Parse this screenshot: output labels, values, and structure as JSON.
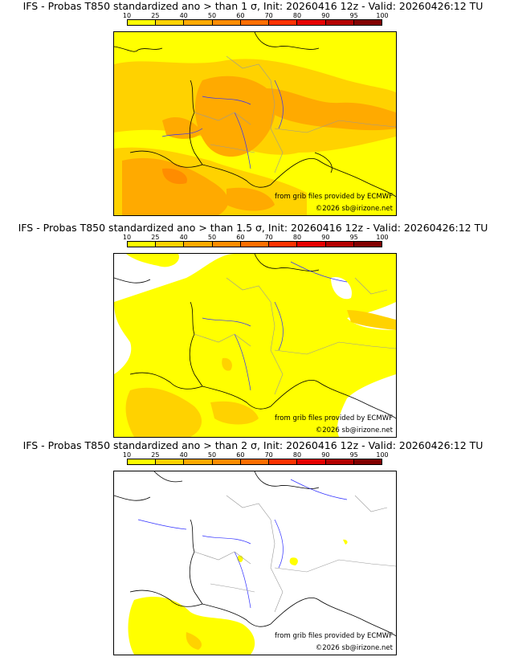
{
  "colorbar": {
    "ticks": [
      "10",
      "25",
      "40",
      "50",
      "60",
      "70",
      "80",
      "90",
      "95",
      "100"
    ],
    "colors": [
      "#ffff00",
      "#ffd200",
      "#ffaa00",
      "#ff8c00",
      "#ff6e00",
      "#ff3200",
      "#e60000",
      "#b40000",
      "#820000"
    ]
  },
  "panels": [
    {
      "title": "IFS - Probas T850  standardized ano > than 1 σ, Init: 20260416 12z - Valid: 20260426:12 TU",
      "credit_ecmwf": "from grib files provided by ECMWF",
      "credit_site": "©2026 sb@irizone.net",
      "field_level": "high"
    },
    {
      "title": "IFS - Probas T850  standardized ano > than 1.5 σ, Init: 20260416 12z - Valid: 20260426:12 TU",
      "credit_ecmwf": "from grib files provided by ECMWF",
      "credit_site": "©2026 sb@irizone.net",
      "field_level": "medium"
    },
    {
      "title": "IFS - Probas T850  standardized ano > than 2 σ, Init: 20260416 12z - Valid: 20260426:12 TU",
      "credit_ecmwf": "from grib files provided by ECMWF",
      "credit_site": "©2026 sb@irizone.net",
      "field_level": "low"
    }
  ]
}
